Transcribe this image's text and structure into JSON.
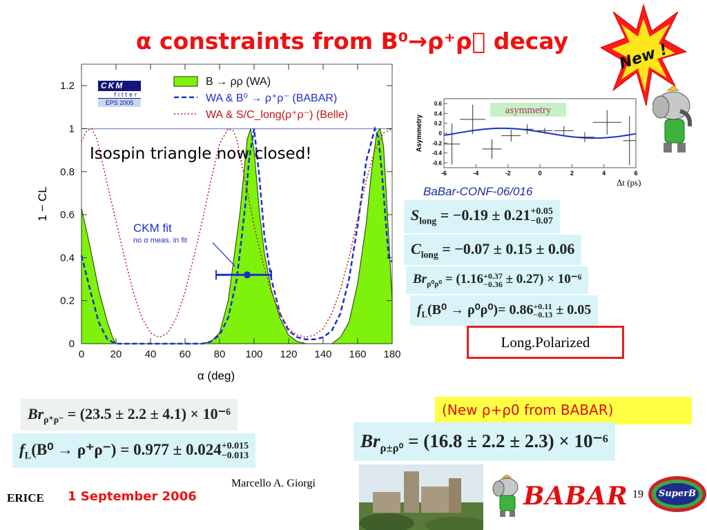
{
  "title": "α constraints from B⁰→ρ⁺ρ\u0000 decay",
  "new_badge": "New !",
  "annotation": "Isospin triangle now closed!",
  "ckm_logo": {
    "line1": "CKM",
    "line2": "fitter",
    "line3": "EPS 2005"
  },
  "ckm_fit_label": "CKM fit",
  "ckm_fit_sublabel": "no α meas. in fit",
  "legend": [
    {
      "label": "B → ρρ (WA)",
      "color": "#7ef20a"
    },
    {
      "label": "WA & B⁰ → ρ⁺ρ⁻ (BABAR)",
      "color": "#1c2fd0"
    },
    {
      "label": "WA & S/C_long(ρ⁺ρ⁻) (Belle)",
      "color": "#c01515"
    }
  ],
  "chart_data": {
    "type": "line",
    "xlabel": "α   (deg)",
    "ylabel": "1 − CL",
    "xlim": [
      0,
      180
    ],
    "ylim": [
      0,
      1.3
    ],
    "xticks": [
      "0",
      "20",
      "40",
      "60",
      "80",
      "100",
      "120",
      "140",
      "160",
      "180"
    ],
    "yticks": [
      "0",
      "0.2",
      "0.4",
      "0.6",
      "0.8",
      "1",
      "1.2"
    ],
    "series": [
      {
        "name": "B → ρρ (WA)",
        "style": "filled",
        "color": "#7ef20a",
        "x": [
          0,
          5,
          10,
          15,
          18,
          20,
          25,
          30,
          40,
          50,
          60,
          70,
          75,
          80,
          85,
          88,
          92,
          96,
          98,
          100,
          103,
          106,
          110,
          115,
          120,
          125,
          130,
          135,
          140,
          145,
          150,
          155,
          160,
          165,
          168,
          171,
          173,
          175,
          178,
          180
        ],
        "y": [
          0.63,
          0.45,
          0.25,
          0.1,
          0.03,
          0.0,
          0.0,
          0.0,
          0.0,
          0.0,
          0.0,
          0.0,
          0.01,
          0.05,
          0.2,
          0.38,
          0.62,
          0.95,
          1.0,
          0.9,
          0.62,
          0.42,
          0.25,
          0.12,
          0.04,
          0.01,
          0.0,
          0.0,
          0.0,
          0.0,
          0.03,
          0.1,
          0.28,
          0.56,
          0.8,
          0.98,
          1.0,
          0.92,
          0.5,
          0.2
        ]
      },
      {
        "name": "WA & B⁰ → ρ⁺ρ⁻ (BABAR)",
        "style": "dashed",
        "color": "#1c2fd0",
        "x": [
          0,
          5,
          10,
          15,
          20,
          25,
          30,
          40,
          50,
          60,
          70,
          75,
          80,
          85,
          90,
          95,
          97,
          100,
          103,
          106,
          110,
          115,
          120,
          125,
          130,
          135,
          140,
          145,
          150,
          155,
          160,
          165,
          170,
          172,
          174,
          176,
          178,
          180
        ],
        "y": [
          0.41,
          0.25,
          0.1,
          0.02,
          0.0,
          0.0,
          0.0,
          0.0,
          0.0,
          0.0,
          0.0,
          0.01,
          0.04,
          0.12,
          0.3,
          0.65,
          0.85,
          1.0,
          0.78,
          0.5,
          0.3,
          0.14,
          0.06,
          0.03,
          0.02,
          0.02,
          0.03,
          0.06,
          0.14,
          0.3,
          0.55,
          0.85,
          1.0,
          0.96,
          0.8,
          0.6,
          0.4,
          0.38
        ]
      },
      {
        "name": "WA & S/C_long(ρ⁺ρ⁻) (Belle)",
        "style": "dotted",
        "color": "#c01515",
        "x": [
          0,
          3,
          6,
          9,
          12,
          15,
          20,
          25,
          30,
          35,
          40,
          45,
          50,
          55,
          60,
          65,
          70,
          75,
          80,
          85,
          88,
          90,
          95,
          100,
          105,
          110,
          115,
          120,
          125,
          130,
          135,
          140,
          145,
          150,
          155,
          160,
          165,
          170,
          175,
          180
        ],
        "y": [
          0.94,
          0.99,
          1.0,
          0.95,
          0.85,
          0.74,
          0.57,
          0.4,
          0.24,
          0.12,
          0.05,
          0.03,
          0.05,
          0.12,
          0.24,
          0.4,
          0.57,
          0.76,
          0.93,
          1.0,
          0.99,
          0.95,
          0.75,
          0.55,
          0.38,
          0.24,
          0.14,
          0.07,
          0.04,
          0.03,
          0.04,
          0.07,
          0.14,
          0.25,
          0.4,
          0.58,
          0.76,
          0.9,
          0.98,
          1.0
        ]
      }
    ],
    "ckm_fit": {
      "central": 96,
      "lo": 78,
      "hi": 110,
      "y": 0.32
    }
  },
  "inset": {
    "label": "asymmetry",
    "ylabel": "Asymmetry",
    "xlabel": "Δt (ps)",
    "yticks": [
      "0.6",
      "0.4",
      "0.2",
      "0",
      "-0.2",
      "-0.4",
      "-0.6"
    ],
    "xticks": [
      "-6",
      "-4",
      "-2",
      "0",
      "2",
      "4",
      "6"
    ],
    "points": [
      {
        "x": -5.5,
        "y": -0.22,
        "ex": 0.5,
        "ey": 0.42
      },
      {
        "x": -4.2,
        "y": 0.28,
        "ex": 0.8,
        "ey": 0.3
      },
      {
        "x": -3.0,
        "y": -0.32,
        "ex": 0.6,
        "ey": 0.2
      },
      {
        "x": -1.8,
        "y": -0.05,
        "ex": 0.6,
        "ey": 0.12
      },
      {
        "x": -0.8,
        "y": 0.08,
        "ex": 0.4,
        "ey": 0.1
      },
      {
        "x": 0.3,
        "y": 0.05,
        "ex": 0.5,
        "ey": 0.06
      },
      {
        "x": 1.5,
        "y": 0.05,
        "ex": 0.6,
        "ey": 0.1
      },
      {
        "x": 2.8,
        "y": -0.08,
        "ex": 0.6,
        "ey": 0.1
      },
      {
        "x": 4.2,
        "y": 0.22,
        "ex": 0.9,
        "ey": 0.25
      },
      {
        "x": 5.6,
        "y": -0.15,
        "ex": 0.4,
        "ey": 0.5
      }
    ],
    "curve_amp": 0.1
  },
  "babar_conf": "BaBar-CONF-06/016",
  "eqs": {
    "s_long_lhs": "S",
    "s_long_sub": "long",
    "s_long_val": " = −0.19 ± 0.21",
    "s_long_up": "+0.05",
    "s_long_dn": "−0.07",
    "c_long_lhs": "C",
    "c_long_sub": "long",
    "c_long_val": " = −0.07 ± 0.15 ± 0.06",
    "br00_lhs": "Br",
    "br00_sub": "ρ⁰ρ⁰",
    "br00_val1": " = (1.16",
    "br00_up": "+0.37",
    "br00_dn": "−0.36",
    "br00_val2": " ± 0.27) × 10⁻⁶",
    "fl00_lhs": "f",
    "fl00_sub": "L",
    "fl00_val1": "(B⁰ → ρ⁰ρ⁰)= 0.86",
    "fl00_up": "+0.11",
    "fl00_dn": "−0.13",
    "fl00_val2": " ± 0.05",
    "brpm_lhs": "Br",
    "brpm_sub": "ρ⁺ρ⁻",
    "brpm_val": " = (23.5 ± 2.2 ± 4.1) × 10⁻⁶",
    "flpm_lhs": "f",
    "flpm_sub": "L",
    "flpm_val1": "(B⁰ → ρ⁺ρ⁻) = 0.977 ± 0.024",
    "flpm_up": "+0.015",
    "flpm_dn": "−0.013",
    "brp0_lhs": "Br",
    "brp0_sub": "ρ±ρ⁰",
    "brp0_val": " = (16.8 ± 2.2 ± 2.3) × 10⁻⁶"
  },
  "long_polarized": "Long.Polarized",
  "new_babar": "(New ρ+ρ0 from BABAR)",
  "footer": {
    "erice": "ERICE",
    "date": "1 September 2006",
    "author": "Marcello A. Giorgi",
    "page": "19",
    "babar": "BABAR",
    "superb": "SuperB"
  },
  "colors": {
    "title": "#ee1111",
    "wa_fill": "#7ef20a",
    "babar": "#1c2fd0",
    "belle": "#c01515",
    "eq_bg": "#d8f4f8"
  }
}
